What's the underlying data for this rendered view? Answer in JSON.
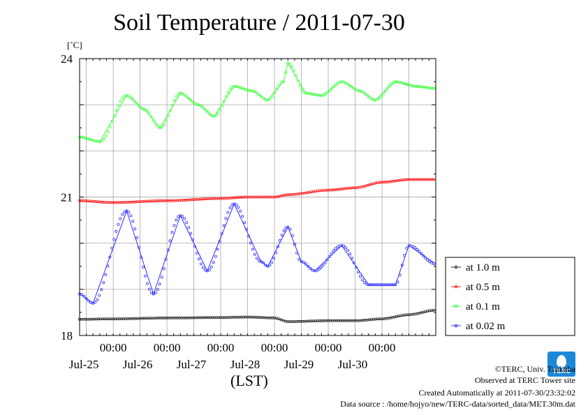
{
  "title": "Soil Temperature / 2011-07-30",
  "unit_label": "[˚C]",
  "xaxis_title": "(LST)",
  "credits": {
    "copyright": "©TERC, Univ. Tsukuba",
    "observed": "Observed at TERC Tower site",
    "created": "Created Automatically at 2011-07-30/23:32:02",
    "source": "Data source : /home/hojyo/new/TERC-data/sorted_data/MET.30m.dat"
  },
  "logo": {
    "text": "TERC",
    "color": "#1e88d8"
  },
  "chart_data": {
    "type": "line",
    "title": "Soil Temperature / 2011-07-30",
    "xlabel": "(LST)",
    "ylabel": "[˚C]",
    "ylim": [
      18,
      24
    ],
    "xlim": [
      "2011-07-24T09:00",
      "2011-07-31T00:00"
    ],
    "yticks": [
      18,
      21,
      24
    ],
    "xticks": [
      {
        "time": "2011-07-25T00:00",
        "label": "00:00",
        "date": "Jul-25"
      },
      {
        "time": "2011-07-26T00:00",
        "label": "00:00",
        "date": "Jul-26"
      },
      {
        "time": "2011-07-27T00:00",
        "label": "00:00",
        "date": "Jul-27"
      },
      {
        "time": "2011-07-28T00:00",
        "label": "00:00",
        "date": "Jul-28"
      },
      {
        "time": "2011-07-29T00:00",
        "label": "00:00",
        "date": "Jul-29"
      },
      {
        "time": "2011-07-30T00:00",
        "label": "00:00",
        "date": "Jul-30"
      }
    ],
    "grid": true,
    "legend_position": "right",
    "series": [
      {
        "name": "at 1.0 m",
        "color": "#333333",
        "x": [
          "2011-07-24T09:00",
          "2011-07-25T00:00",
          "2011-07-26T00:00",
          "2011-07-27T00:00",
          "2011-07-27T12:00",
          "2011-07-28T00:00",
          "2011-07-28T06:00",
          "2011-07-29T00:00",
          "2011-07-29T12:00",
          "2011-07-30T00:00",
          "2011-07-30T12:00",
          "2011-07-31T00:00"
        ],
        "values": [
          18.35,
          18.36,
          18.38,
          18.39,
          18.4,
          18.38,
          18.3,
          18.32,
          18.32,
          18.36,
          18.45,
          18.55
        ]
      },
      {
        "name": "at 0.5 m",
        "color": "#ff2020",
        "x": [
          "2011-07-24T09:00",
          "2011-07-25T00:00",
          "2011-07-26T00:00",
          "2011-07-27T00:00",
          "2011-07-27T12:00",
          "2011-07-28T00:00",
          "2011-07-28T06:00",
          "2011-07-29T00:00",
          "2011-07-29T12:00",
          "2011-07-30T00:00",
          "2011-07-30T12:00",
          "2011-07-31T00:00"
        ],
        "values": [
          20.92,
          20.88,
          20.92,
          20.97,
          21.0,
          21.0,
          21.05,
          21.15,
          21.2,
          21.32,
          21.38,
          21.38
        ]
      },
      {
        "name": "at 0.1 m",
        "color": "#40ff40",
        "x": [
          "2011-07-24T09:00",
          "2011-07-24T18:00",
          "2011-07-25T06:00",
          "2011-07-25T14:00",
          "2011-07-25T21:00",
          "2011-07-26T06:00",
          "2011-07-26T14:00",
          "2011-07-26T21:00",
          "2011-07-27T06:00",
          "2011-07-27T14:00",
          "2011-07-27T21:00",
          "2011-07-28T04:00",
          "2011-07-28T06:00",
          "2011-07-28T14:00",
          "2011-07-28T21:00",
          "2011-07-29T06:00",
          "2011-07-29T14:00",
          "2011-07-29T21:00",
          "2011-07-30T06:00",
          "2011-07-30T15:00",
          "2011-07-31T00:00"
        ],
        "values": [
          22.3,
          22.2,
          23.2,
          22.9,
          22.5,
          23.25,
          23.0,
          22.75,
          23.4,
          23.3,
          23.1,
          23.5,
          23.9,
          23.25,
          23.2,
          23.5,
          23.3,
          23.1,
          23.5,
          23.4,
          23.35
        ]
      },
      {
        "name": "at 0.02 m",
        "color": "#3030ff",
        "x": [
          "2011-07-24T09:00",
          "2011-07-24T15:00",
          "2011-07-25T06:00",
          "2011-07-25T18:00",
          "2011-07-26T06:00",
          "2011-07-26T18:00",
          "2011-07-27T06:00",
          "2011-07-27T18:00",
          "2011-07-27T21:00",
          "2011-07-28T06:00",
          "2011-07-28T12:00",
          "2011-07-28T18:00",
          "2011-07-29T06:00",
          "2011-07-29T18:00",
          "2011-07-30T06:00",
          "2011-07-30T12:00",
          "2011-07-31T00:00"
        ],
        "values": [
          18.9,
          18.7,
          20.7,
          18.9,
          20.6,
          19.4,
          20.85,
          19.6,
          19.5,
          20.35,
          19.6,
          19.4,
          19.95,
          19.1,
          19.1,
          19.95,
          19.55
        ]
      }
    ]
  }
}
